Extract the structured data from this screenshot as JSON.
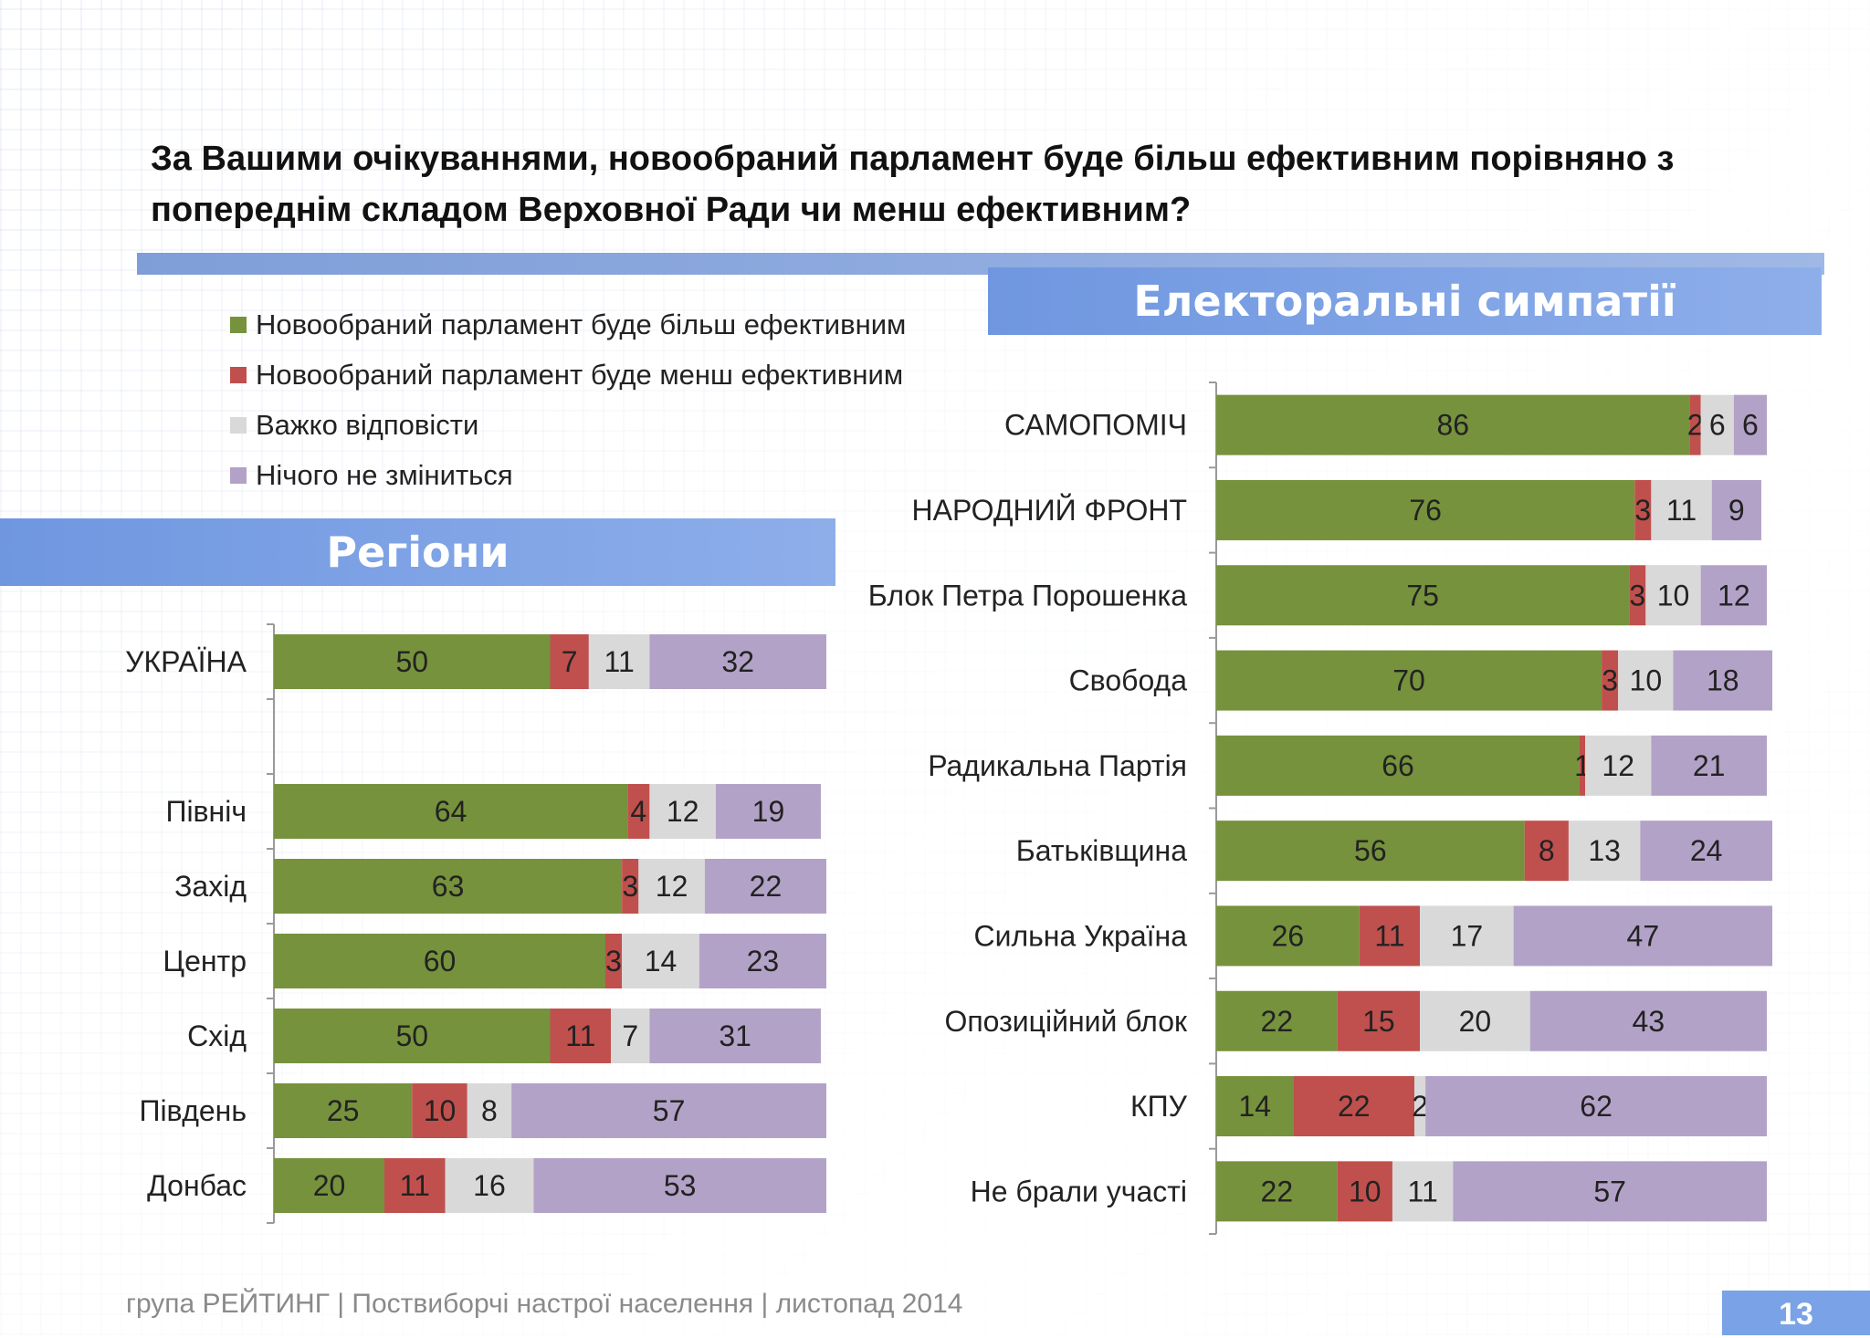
{
  "question": "За Вашими очікуваннями, новообраний парламент буде більш ефективним порівняно з попереднім складом Верховної Ради чи менш ефективним?",
  "banners": {
    "parties": "Електоральні симпатії",
    "regions": "Регіони"
  },
  "legend": [
    {
      "label": "Новообраний парламент буде більш ефективним",
      "color": "#76923c"
    },
    {
      "label": "Новообраний парламент буде менш ефективним",
      "color": "#c0504d"
    },
    {
      "label": "Важко відповісти",
      "color": "#d9d9d9"
    },
    {
      "label": "Нічого не зміниться",
      "color": "#b3a2c7"
    }
  ],
  "footer": "група РЕЙТИНГ  |  Поствиборчі настрої населення  |  листопад 2014",
  "page_number": "13",
  "chart_data": [
    {
      "type": "bar",
      "orientation": "horizontal",
      "stacked": true,
      "title": "Регіони",
      "categories": [
        "УКРАЇНА",
        "",
        "Північ",
        "Захід",
        "Центр",
        "Схід",
        "Південь",
        "Донбас"
      ],
      "series": [
        {
          "name": "Новообраний парламент буде більш ефективним",
          "values": [
            50,
            null,
            64,
            63,
            60,
            50,
            25,
            20
          ]
        },
        {
          "name": "Новообраний парламент буде менш ефективним",
          "values": [
            7,
            null,
            4,
            3,
            3,
            11,
            10,
            11
          ]
        },
        {
          "name": "Важко відповісти",
          "values": [
            11,
            null,
            12,
            12,
            14,
            7,
            8,
            16
          ]
        },
        {
          "name": "Нічого не зміниться",
          "values": [
            32,
            null,
            19,
            22,
            23,
            31,
            57,
            53
          ]
        }
      ]
    },
    {
      "type": "bar",
      "orientation": "horizontal",
      "stacked": true,
      "title": "Електоральні симпатії",
      "categories": [
        "САМОПОМІЧ",
        "НАРОДНИЙ ФРОНТ",
        "Блок Петра Порошенка",
        "Свобода",
        "Радикальна Партія",
        "Батьківщина",
        "Сильна Україна",
        "Опозиційний блок",
        "КПУ",
        "Не брали участі"
      ],
      "series": [
        {
          "name": "Новообраний парламент буде більш ефективним",
          "values": [
            86,
            76,
            75,
            70,
            66,
            56,
            26,
            22,
            14,
            22
          ]
        },
        {
          "name": "Новообраний парламент буде менш ефективним",
          "values": [
            2,
            3,
            3,
            3,
            1,
            8,
            11,
            15,
            22,
            10
          ]
        },
        {
          "name": "Важко відповісти",
          "values": [
            6,
            11,
            10,
            10,
            12,
            13,
            17,
            20,
            2,
            11
          ]
        },
        {
          "name": "Нічого не зміниться",
          "values": [
            6,
            9,
            12,
            18,
            21,
            24,
            47,
            43,
            62,
            57
          ]
        }
      ]
    }
  ]
}
